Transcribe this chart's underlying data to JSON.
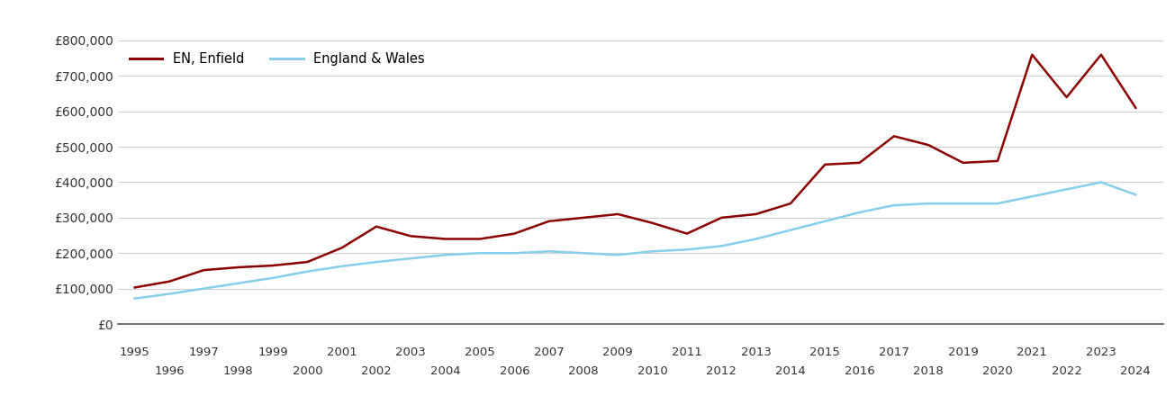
{
  "enfield_years": [
    1995,
    1996,
    1997,
    1998,
    1999,
    2000,
    2001,
    2002,
    2003,
    2004,
    2005,
    2006,
    2007,
    2008,
    2009,
    2010,
    2011,
    2012,
    2013,
    2014,
    2015,
    2016,
    2017,
    2018,
    2019,
    2020,
    2021,
    2022,
    2023,
    2024
  ],
  "enfield_values": [
    103000,
    120000,
    152000,
    160000,
    165000,
    175000,
    215000,
    275000,
    248000,
    240000,
    240000,
    255000,
    290000,
    300000,
    310000,
    285000,
    255000,
    300000,
    310000,
    340000,
    450000,
    455000,
    530000,
    505000,
    455000,
    460000,
    760000,
    640000,
    760000,
    610000
  ],
  "ew_years": [
    1995,
    1996,
    1997,
    1998,
    1999,
    2000,
    2001,
    2002,
    2003,
    2004,
    2005,
    2006,
    2007,
    2008,
    2009,
    2010,
    2011,
    2012,
    2013,
    2014,
    2015,
    2016,
    2017,
    2018,
    2019,
    2020,
    2021,
    2022,
    2023,
    2024
  ],
  "ew_values": [
    72000,
    85000,
    100000,
    115000,
    130000,
    148000,
    163000,
    175000,
    185000,
    195000,
    200000,
    200000,
    205000,
    200000,
    195000,
    205000,
    210000,
    220000,
    240000,
    265000,
    290000,
    315000,
    335000,
    340000,
    340000,
    340000,
    360000,
    380000,
    400000,
    365000
  ],
  "enfield_color": "#8B0000",
  "ew_color": "#87CEEB",
  "enfield_label": "EN, Enfield",
  "ew_label": "England & Wales",
  "ylim": [
    0,
    800000
  ],
  "yticks": [
    0,
    100000,
    200000,
    300000,
    400000,
    500000,
    600000,
    700000,
    800000
  ],
  "ytick_labels": [
    "£0",
    "£100,000",
    "£200,000",
    "£300,000",
    "£400,000",
    "£500,000",
    "£600,000",
    "£700,000",
    "£800,000"
  ],
  "background_color": "#ffffff",
  "grid_color": "#d0d0d0",
  "line_width": 1.8,
  "odd_years": [
    1995,
    1997,
    1999,
    2001,
    2003,
    2005,
    2007,
    2009,
    2011,
    2013,
    2015,
    2017,
    2019,
    2021,
    2023
  ],
  "even_years": [
    1996,
    1998,
    2000,
    2002,
    2004,
    2006,
    2008,
    2010,
    2012,
    2014,
    2016,
    2018,
    2020,
    2022,
    2024
  ]
}
